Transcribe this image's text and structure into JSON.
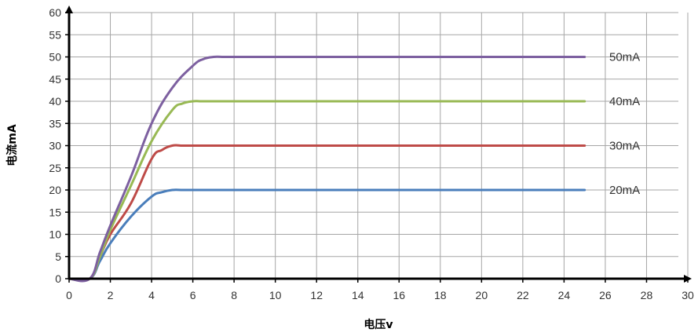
{
  "chart_data": {
    "type": "line",
    "title": "",
    "xlabel": "电压v",
    "ylabel": "电流mA",
    "xlim": [
      0,
      30
    ],
    "ylim": [
      0,
      60
    ],
    "xticks": [
      0,
      2,
      4,
      6,
      8,
      10,
      12,
      14,
      16,
      18,
      20,
      22,
      24,
      26,
      28,
      30
    ],
    "yticks": [
      0,
      5,
      10,
      15,
      20,
      25,
      30,
      35,
      40,
      45,
      50,
      55,
      60
    ],
    "grid": true,
    "legend": "right-of-lines",
    "series": [
      {
        "name": "20mA",
        "color": "#4a7ebb",
        "x": [
          0,
          1,
          1.5,
          2,
          3,
          4,
          4.5,
          5,
          5.5,
          6,
          8,
          10,
          15,
          20,
          25
        ],
        "y": [
          0,
          0,
          4,
          8,
          14,
          18.5,
          19.5,
          20,
          20,
          20,
          20,
          20,
          20,
          20,
          20
        ]
      },
      {
        "name": "30mA",
        "color": "#be4b48",
        "x": [
          0,
          1,
          1.5,
          2,
          3,
          4,
          4.5,
          5,
          5.5,
          6,
          8,
          10,
          15,
          20,
          25
        ],
        "y": [
          0,
          0,
          5,
          10,
          17,
          27,
          29,
          30,
          30,
          30,
          30,
          30,
          30,
          30,
          30
        ]
      },
      {
        "name": "40mA",
        "color": "#98b954",
        "x": [
          0,
          1,
          1.5,
          2,
          3,
          4,
          5,
          5.5,
          6,
          6.5,
          8,
          10,
          15,
          20,
          25
        ],
        "y": [
          0,
          0,
          5,
          11,
          21,
          31,
          38,
          39.5,
          40,
          40,
          40,
          40,
          40,
          40,
          40
        ]
      },
      {
        "name": "50mA",
        "color": "#7d60a0",
        "x": [
          0,
          1,
          1.5,
          2,
          3,
          4,
          5,
          6,
          6.5,
          7,
          7.5,
          8,
          10,
          15,
          20,
          25
        ],
        "y": [
          0,
          0,
          6,
          12,
          23,
          35,
          43,
          48,
          49.5,
          50,
          50,
          50,
          50,
          50,
          50,
          50
        ]
      }
    ]
  }
}
